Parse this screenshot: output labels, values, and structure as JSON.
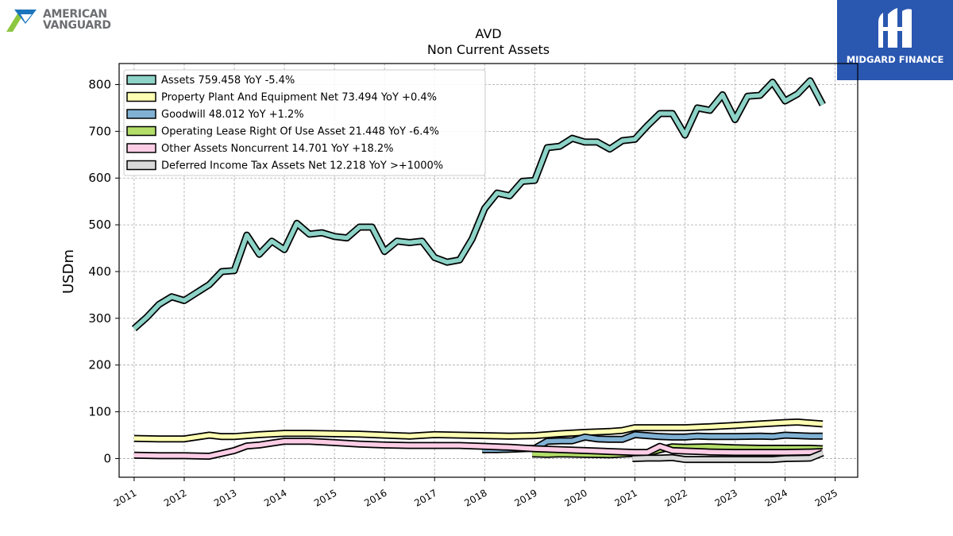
{
  "logos": {
    "left_line1": "AMERICAN",
    "left_line2": "VANGUARD",
    "right_text": "MIDGARD FINANCE"
  },
  "chart_data": {
    "type": "line",
    "title": "AVD",
    "subtitle": "Non Current  Assets",
    "ylabel": "USDm",
    "xlabel": "",
    "ylim": [
      -40,
      845
    ],
    "xlim": [
      2010.7,
      2025.45
    ],
    "yticks": [
      0,
      100,
      200,
      300,
      400,
      500,
      600,
      700,
      800
    ],
    "xticks": [
      2011,
      2012,
      2013,
      2014,
      2015,
      2016,
      2017,
      2018,
      2019,
      2020,
      2021,
      2022,
      2023,
      2024,
      2025
    ],
    "grid": true,
    "legend_position": "top-left",
    "series": [
      {
        "name": "Assets",
        "legend": "Assets  759.458 YoY -5.4%",
        "color": "#8dd3c7",
        "points": [
          [
            2011.0,
            278
          ],
          [
            2011.25,
            302
          ],
          [
            2011.5,
            330
          ],
          [
            2011.75,
            346
          ],
          [
            2012.0,
            338
          ],
          [
            2012.25,
            355
          ],
          [
            2012.5,
            372
          ],
          [
            2012.75,
            400
          ],
          [
            2013.0,
            402
          ],
          [
            2013.25,
            478
          ],
          [
            2013.5,
            437
          ],
          [
            2013.75,
            465
          ],
          [
            2014.0,
            447
          ],
          [
            2014.25,
            503
          ],
          [
            2014.5,
            480
          ],
          [
            2014.75,
            483
          ],
          [
            2015.0,
            475
          ],
          [
            2015.25,
            472
          ],
          [
            2015.5,
            495
          ],
          [
            2015.75,
            495
          ],
          [
            2016.0,
            443
          ],
          [
            2016.25,
            465
          ],
          [
            2016.5,
            462
          ],
          [
            2016.75,
            465
          ],
          [
            2017.0,
            430
          ],
          [
            2017.25,
            420
          ],
          [
            2017.5,
            425
          ],
          [
            2017.75,
            470
          ],
          [
            2018.0,
            535
          ],
          [
            2018.25,
            568
          ],
          [
            2018.5,
            562
          ],
          [
            2018.75,
            593
          ],
          [
            2019.0,
            595
          ],
          [
            2019.25,
            665
          ],
          [
            2019.5,
            668
          ],
          [
            2019.75,
            685
          ],
          [
            2020.0,
            677
          ],
          [
            2020.25,
            677
          ],
          [
            2020.5,
            662
          ],
          [
            2020.75,
            680
          ],
          [
            2021.0,
            683
          ],
          [
            2021.25,
            712
          ],
          [
            2021.5,
            738
          ],
          [
            2021.75,
            738
          ],
          [
            2022.0,
            692
          ],
          [
            2022.25,
            750
          ],
          [
            2022.5,
            745
          ],
          [
            2022.75,
            778
          ],
          [
            2023.0,
            725
          ],
          [
            2023.25,
            775
          ],
          [
            2023.5,
            777
          ],
          [
            2023.75,
            805
          ],
          [
            2024.0,
            765
          ],
          [
            2024.25,
            780
          ],
          [
            2024.5,
            808
          ],
          [
            2024.75,
            757
          ]
        ]
      },
      {
        "name": "Property Plant And Equipment Net",
        "legend": "Property Plant And Equipment Net  73.494 YoY +0.4%",
        "color": "#ffffb3",
        "points": [
          [
            2011.0,
            43
          ],
          [
            2011.5,
            42
          ],
          [
            2012.0,
            42
          ],
          [
            2012.5,
            50
          ],
          [
            2012.75,
            47
          ],
          [
            2013.0,
            47
          ],
          [
            2013.5,
            51
          ],
          [
            2014.0,
            54
          ],
          [
            2014.5,
            54
          ],
          [
            2015.0,
            53
          ],
          [
            2015.5,
            52
          ],
          [
            2016.0,
            50
          ],
          [
            2016.5,
            48
          ],
          [
            2017.0,
            51
          ],
          [
            2017.5,
            50
          ],
          [
            2018.0,
            49
          ],
          [
            2018.5,
            48
          ],
          [
            2019.0,
            49
          ],
          [
            2019.5,
            53
          ],
          [
            2020.0,
            56
          ],
          [
            2020.5,
            58
          ],
          [
            2020.75,
            60
          ],
          [
            2021.0,
            66
          ],
          [
            2021.5,
            66
          ],
          [
            2022.0,
            66
          ],
          [
            2022.5,
            68
          ],
          [
            2023.0,
            71
          ],
          [
            2023.5,
            74
          ],
          [
            2024.0,
            77
          ],
          [
            2024.25,
            78
          ],
          [
            2024.75,
            74
          ]
        ]
      },
      {
        "name": "Goodwill",
        "legend": "Goodwill  48.012 YoY +1.2%",
        "color": "#80b1d3",
        "points": [
          [
            2017.95,
            19
          ],
          [
            2018.25,
            19
          ],
          [
            2018.5,
            20
          ],
          [
            2018.75,
            21
          ],
          [
            2019.0,
            22
          ],
          [
            2019.25,
            37
          ],
          [
            2019.5,
            38
          ],
          [
            2019.75,
            38
          ],
          [
            2020.0,
            46
          ],
          [
            2020.25,
            42
          ],
          [
            2020.5,
            41
          ],
          [
            2020.75,
            41
          ],
          [
            2021.0,
            51
          ],
          [
            2021.25,
            49
          ],
          [
            2021.5,
            47
          ],
          [
            2021.75,
            46
          ],
          [
            2022.0,
            46
          ],
          [
            2022.25,
            48
          ],
          [
            2022.5,
            47
          ],
          [
            2022.75,
            47
          ],
          [
            2023.0,
            47
          ],
          [
            2023.5,
            48
          ],
          [
            2023.75,
            47
          ],
          [
            2024.0,
            50
          ],
          [
            2024.5,
            48
          ],
          [
            2024.75,
            48
          ]
        ]
      },
      {
        "name": "Operating Lease Right Of Use Asset",
        "legend": "Operating Lease Right Of Use Asset  21.448 YoY -6.4%",
        "color": "#b3de69",
        "points": [
          [
            2018.95,
            10
          ],
          [
            2019.25,
            9
          ],
          [
            2019.5,
            10
          ],
          [
            2020.0,
            9
          ],
          [
            2020.5,
            8
          ],
          [
            2021.0,
            11
          ],
          [
            2021.25,
            11
          ],
          [
            2021.5,
            19
          ],
          [
            2021.75,
            25
          ],
          [
            2022.0,
            24
          ],
          [
            2022.5,
            25
          ],
          [
            2023.0,
            23
          ],
          [
            2023.5,
            22
          ],
          [
            2024.0,
            22
          ],
          [
            2024.5,
            22
          ],
          [
            2024.75,
            21
          ]
        ]
      },
      {
        "name": "Other Assets Noncurrent",
        "legend": "Other Assets Noncurrent  14.701 YoY +18.2%",
        "color": "#fccde5",
        "points": [
          [
            2011.0,
            7
          ],
          [
            2011.5,
            6
          ],
          [
            2012.0,
            6
          ],
          [
            2012.5,
            5
          ],
          [
            2012.75,
            11
          ],
          [
            2013.0,
            17
          ],
          [
            2013.25,
            27
          ],
          [
            2013.5,
            29
          ],
          [
            2013.75,
            33
          ],
          [
            2014.0,
            37
          ],
          [
            2014.5,
            37
          ],
          [
            2015.0,
            34
          ],
          [
            2015.5,
            31
          ],
          [
            2016.0,
            29
          ],
          [
            2016.5,
            28
          ],
          [
            2017.0,
            28
          ],
          [
            2017.5,
            28
          ],
          [
            2018.0,
            26
          ],
          [
            2018.5,
            24
          ],
          [
            2019.0,
            21
          ],
          [
            2019.5,
            19
          ],
          [
            2020.0,
            17
          ],
          [
            2020.5,
            15
          ],
          [
            2021.0,
            13
          ],
          [
            2021.25,
            13
          ],
          [
            2021.5,
            26
          ],
          [
            2021.75,
            17
          ],
          [
            2022.0,
            16
          ],
          [
            2022.5,
            14
          ],
          [
            2023.0,
            13
          ],
          [
            2023.5,
            13
          ],
          [
            2024.0,
            13
          ],
          [
            2024.5,
            14
          ],
          [
            2024.75,
            15
          ]
        ]
      },
      {
        "name": "Deferred Income Tax Assets Net",
        "legend": "Deferred Income Tax Assets Net  12.218 YoY >+1000%",
        "color": "#d9d9d9",
        "points": [
          [
            2020.95,
            0
          ],
          [
            2021.25,
            1
          ],
          [
            2021.5,
            1
          ],
          [
            2021.75,
            2
          ],
          [
            2022.0,
            -2
          ],
          [
            2022.5,
            -2
          ],
          [
            2023.0,
            -2
          ],
          [
            2023.5,
            -2
          ],
          [
            2023.75,
            -2
          ],
          [
            2024.0,
            0
          ],
          [
            2024.5,
            1
          ],
          [
            2024.75,
            12
          ]
        ]
      }
    ]
  }
}
